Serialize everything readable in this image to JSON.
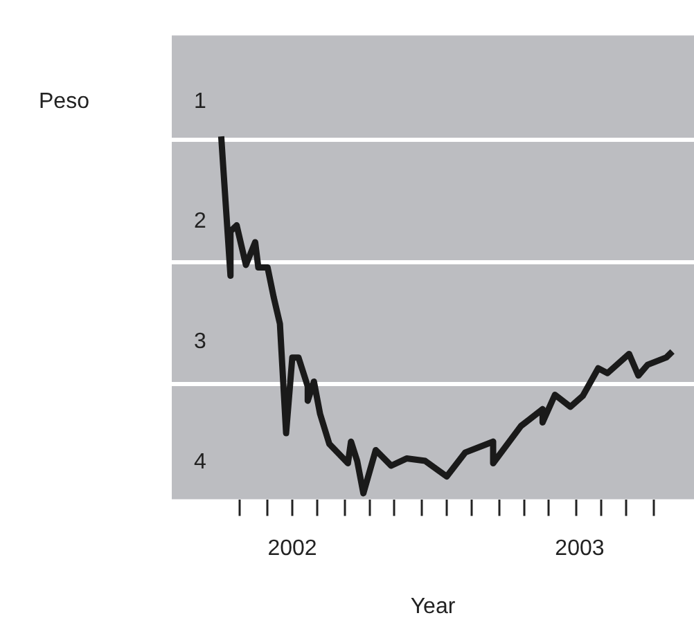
{
  "chart_data": {
    "type": "line",
    "ylabel": "Peso",
    "xlabel": "Year",
    "grid": "y",
    "legend": false,
    "marker": "none",
    "line_style": "solid",
    "xlim": [
      2001.86,
      2003.55
    ],
    "ylim": [
      4.31,
      0.45
    ],
    "xticks": [
      {
        "value": 2002.25,
        "label": "2002"
      },
      {
        "value": 2003.18,
        "label": "2003"
      },
      {
        "value": 2002.08,
        "label": null
      },
      {
        "value": 2002.17,
        "label": null
      },
      {
        "value": 2002.25,
        "label": null
      },
      {
        "value": 2002.33,
        "label": null
      },
      {
        "value": 2002.42,
        "label": null
      },
      {
        "value": 2002.5,
        "label": null
      },
      {
        "value": 2002.58,
        "label": null
      },
      {
        "value": 2002.67,
        "label": null
      },
      {
        "value": 2002.75,
        "label": null
      },
      {
        "value": 2002.83,
        "label": null
      },
      {
        "value": 2002.92,
        "label": null
      },
      {
        "value": 2003,
        "label": null
      },
      {
        "value": 2003.08,
        "label": null
      },
      {
        "value": 2003.17,
        "label": null
      },
      {
        "value": 2003.25,
        "label": null
      },
      {
        "value": 2003.33,
        "label": null
      },
      {
        "value": 2003.42,
        "label": null
      }
    ],
    "yticks": [
      1,
      2,
      3,
      4,
      {
        "value": 1.32,
        "label": null
      },
      {
        "value": 2.34,
        "label": null
      },
      {
        "value": 3.35,
        "label": null
      }
    ],
    "series": [
      {
        "color": "#1a1a1a",
        "x": [
          2002.02,
          2002.05,
          2002.05,
          2002.07,
          2002.1,
          2002.13,
          2002.14,
          2002.17,
          2002.19,
          2002.21,
          2002.23,
          2002.25,
          2002.27,
          2002.3,
          2002.3,
          2002.32,
          2002.34,
          2002.37,
          2002.43,
          2002.44,
          2002.46,
          2002.48,
          2002.52,
          2002.57,
          2002.62,
          2002.68,
          2002.75,
          2002.81,
          2002.9,
          2002.9,
          2002.99,
          2003.06,
          2003.06,
          2003.1,
          2003.15,
          2003.19,
          2003.24,
          2003.27,
          2003.34,
          2003.37,
          2003.4,
          2003.46,
          2003.48
        ],
        "values": [
          1.29,
          2.45,
          2.08,
          2.03,
          2.36,
          2.17,
          2.38,
          2.38,
          2.63,
          2.85,
          3.76,
          3.13,
          3.13,
          3.37,
          3.49,
          3.33,
          3.6,
          3.85,
          4.01,
          3.83,
          3.99,
          4.26,
          3.9,
          4.03,
          3.97,
          3.99,
          4.12,
          3.92,
          3.83,
          4.01,
          3.7,
          3.56,
          3.67,
          3.44,
          3.54,
          3.45,
          3.22,
          3.26,
          3.1,
          3.28,
          3.19,
          3.13,
          3.08
        ]
      }
    ]
  }
}
